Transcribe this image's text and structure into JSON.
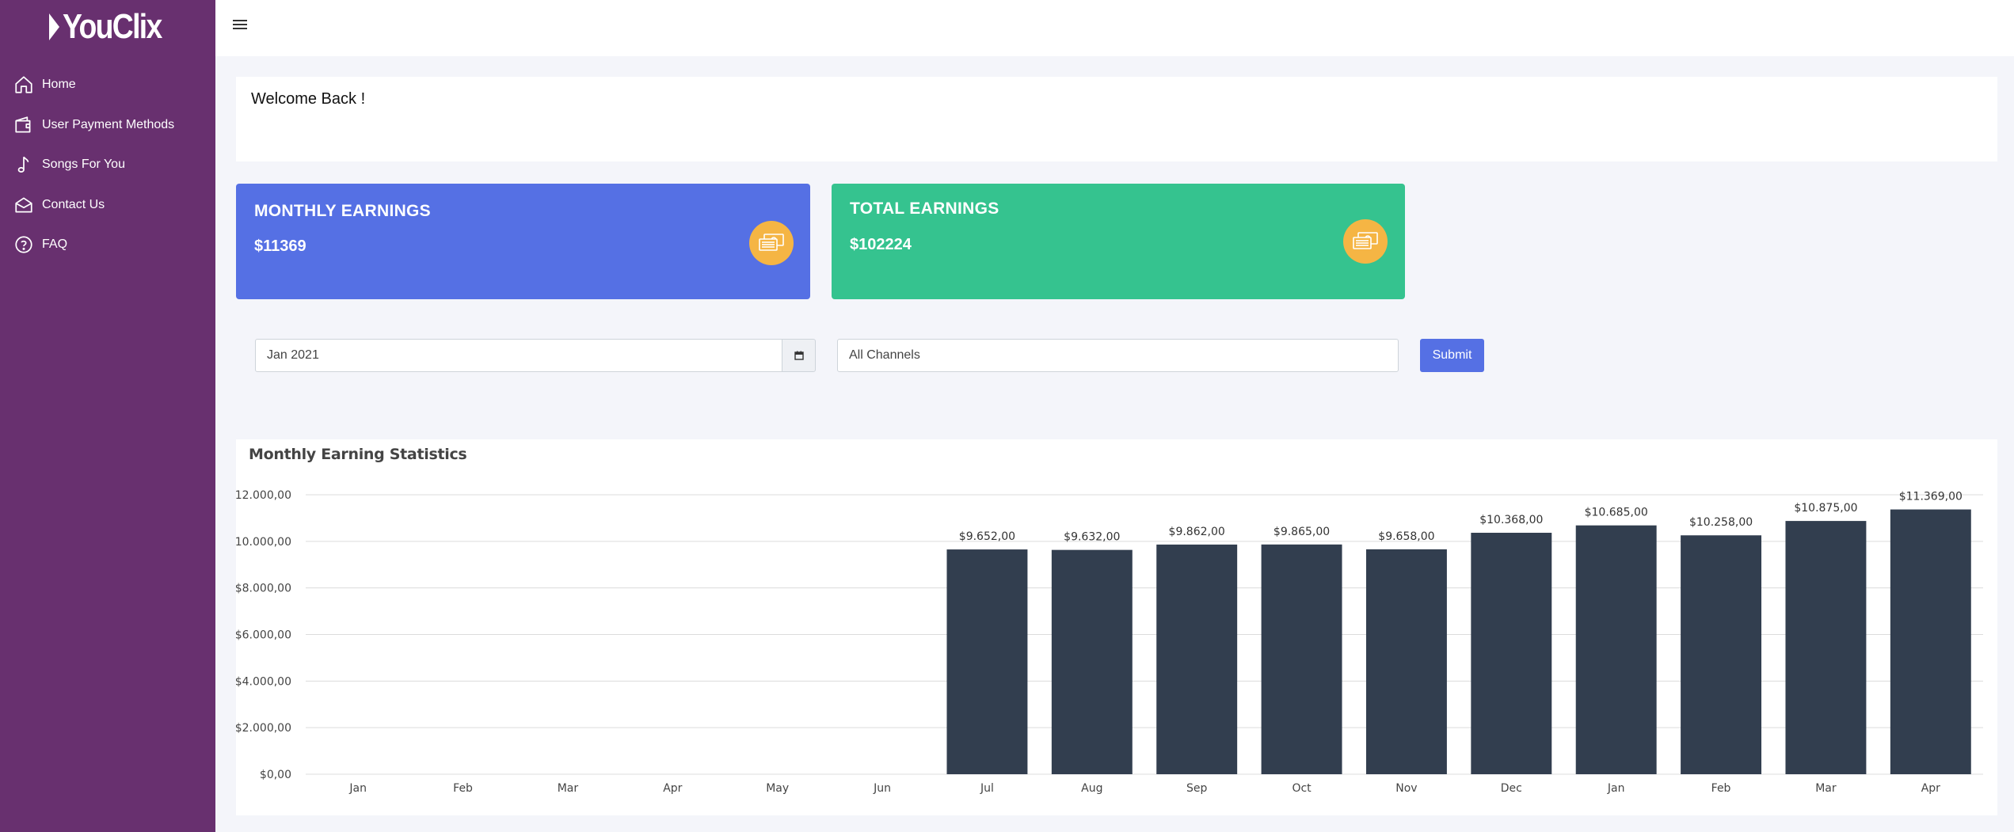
{
  "brand": {
    "name": "YouClix"
  },
  "sidebar": {
    "items": [
      {
        "label": "Home",
        "icon": "home-icon"
      },
      {
        "label": "User Payment Methods",
        "icon": "wallet-icon"
      },
      {
        "label": "Songs For You",
        "icon": "music-note-icon"
      },
      {
        "label": "Contact Us",
        "icon": "envelope-icon"
      },
      {
        "label": "FAQ",
        "icon": "question-circle-icon"
      }
    ]
  },
  "header": {
    "menu_icon": "hamburger-icon"
  },
  "welcome": {
    "text": "Welcome Back !"
  },
  "cards": {
    "monthly": {
      "title": "MONTHLY EARNINGS",
      "value": "$11369",
      "icon": "money-icon",
      "color": "#5570e4"
    },
    "total": {
      "title": "TOTAL EARNINGS",
      "value": "$102224",
      "icon": "money-icon",
      "color": "#35c38f"
    }
  },
  "filters": {
    "date_value": "Jan 2021",
    "channel_value": "All Channels",
    "submit_label": "Submit"
  },
  "chart_data": {
    "type": "bar",
    "title": "Monthly Earning Statistics",
    "categories": [
      "Jan",
      "Feb",
      "Mar",
      "Apr",
      "May",
      "Jun",
      "Jul",
      "Aug",
      "Sep",
      "Oct",
      "Nov",
      "Dec",
      "Jan",
      "Feb",
      "Mar",
      "Apr"
    ],
    "values": [
      0,
      0,
      0,
      0,
      0,
      0,
      9652,
      9632,
      9862,
      9865,
      9658,
      10368,
      10685,
      10258,
      10875,
      11369
    ],
    "data_labels": [
      "",
      "",
      "",
      "",
      "",
      "",
      "$9.652,00",
      "$9.632,00",
      "$9.862,00",
      "$9.865,00",
      "$9.658,00",
      "$10.368,00",
      "$10.685,00",
      "$10.258,00",
      "$10.875,00",
      "$11.369,00"
    ],
    "y_ticks": [
      "$0,00",
      "$2.000,00",
      "$4.000,00",
      "$6.000,00",
      "$8.000,00",
      "$10.000,00",
      "$12.000,00"
    ],
    "ylim": [
      0,
      12000
    ],
    "bar_color": "#323e4f",
    "grid": true
  }
}
